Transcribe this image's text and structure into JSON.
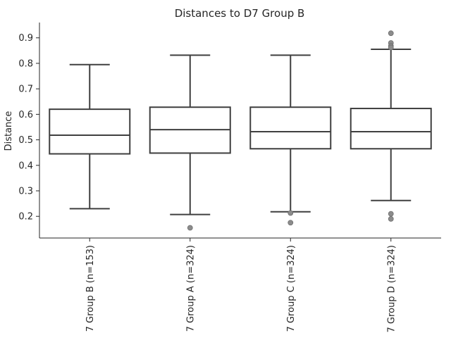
{
  "chart_data": {
    "type": "box",
    "title": "Distances to D7 Group B",
    "xlabel": "",
    "ylabel": "Distance",
    "ylim": [
      0.115,
      0.96
    ],
    "yticks": [
      "0.2",
      "0.3",
      "0.4",
      "0.5",
      "0.6",
      "0.7",
      "0.8",
      "0.9"
    ],
    "grid": false,
    "categories": [
      "7 Group B (n=153)",
      "7 Group A (n=324)",
      "7 Group C (n=324)",
      "7 Group D (n=324)"
    ],
    "boxes": [
      {
        "whisker_low": 0.23,
        "q1": 0.445,
        "median": 0.518,
        "q3": 0.62,
        "whisker_high": 0.795,
        "outliers": []
      },
      {
        "whisker_low": 0.207,
        "q1": 0.448,
        "median": 0.54,
        "q3": 0.628,
        "whisker_high": 0.832,
        "outliers": [
          0.155
        ]
      },
      {
        "whisker_low": 0.218,
        "q1": 0.465,
        "median": 0.532,
        "q3": 0.628,
        "whisker_high": 0.832,
        "outliers": [
          0.213,
          0.175
        ]
      },
      {
        "whisker_low": 0.262,
        "q1": 0.465,
        "median": 0.532,
        "q3": 0.623,
        "whisker_high": 0.855,
        "outliers": [
          0.918,
          0.88,
          0.868,
          0.862,
          0.21,
          0.19
        ]
      }
    ],
    "colors": {
      "box_edge": "#3f3f3f",
      "box_fill": "#ffffff",
      "outlier": "#8c8c8c",
      "axis": "#262626"
    }
  }
}
